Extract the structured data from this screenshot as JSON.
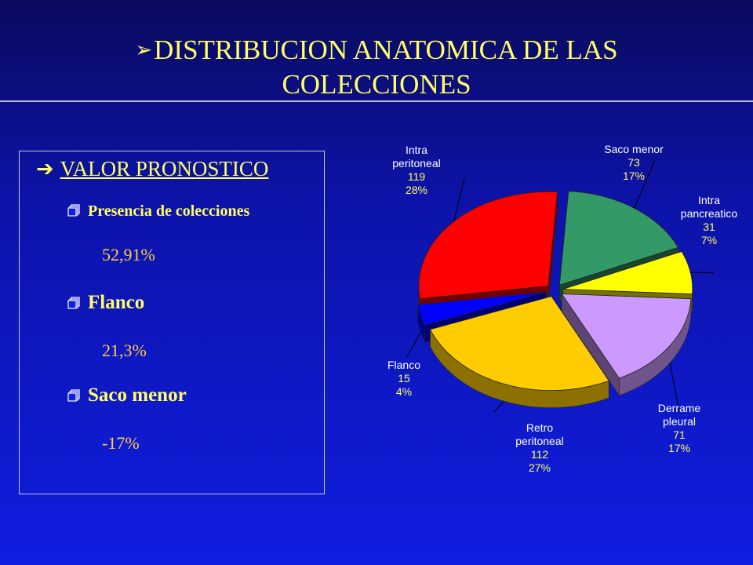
{
  "title": {
    "arrow": "➢",
    "line1": "DISTRIBUCION  ANATOMICA DE LAS",
    "line2": "COLECCIONES"
  },
  "panel": {
    "heading_arrow": "➔",
    "heading": "VALOR PRONOSTICO",
    "items": [
      {
        "label": "Presencia de colecciones",
        "value": "52,91%"
      },
      {
        "label": "Flanco",
        "value": "21,3%"
      },
      {
        "label": "Saco menor",
        "value": "-17%"
      }
    ]
  },
  "colors": {
    "title": "#ffff66",
    "background": "#0f1ee0",
    "values": "#ffcc44"
  },
  "chart_data": {
    "type": "pie",
    "title": "",
    "slices": [
      {
        "name": "Saco menor",
        "value": 73,
        "percent": "17%",
        "color": "#339966"
      },
      {
        "name": "Intra pancreatico",
        "value": 31,
        "percent": "7%",
        "color": "#ffff00"
      },
      {
        "name": "Derrame pleural",
        "value": 71,
        "percent": "17%",
        "color": "#cc99ff"
      },
      {
        "name": "Retro peritoneal",
        "value": 112,
        "percent": "27%",
        "color": "#ffcc00"
      },
      {
        "name": "Flanco",
        "value": 15,
        "percent": "4%",
        "color": "#0000ff"
      },
      {
        "name": "Intra peritoneal",
        "value": 119,
        "percent": "28%",
        "color": "#ff0000"
      }
    ],
    "labels": [
      {
        "line1": "Saco menor",
        "line2": "",
        "value": "73",
        "percent": "17%"
      },
      {
        "line1": "Intra",
        "line2": "pancreatico",
        "value": "31",
        "percent": "7%"
      },
      {
        "line1": "Derrame",
        "line2": "pleural",
        "value": "71",
        "percent": "17%"
      },
      {
        "line1": "Retro",
        "line2": "peritoneal",
        "value": "112",
        "percent": "27%"
      },
      {
        "line1": "Flanco",
        "line2": "",
        "value": "15",
        "percent": "4%"
      },
      {
        "line1": "Intra",
        "line2": "peritoneal",
        "value": "119",
        "percent": "28%"
      }
    ],
    "style": "3d-exploded"
  }
}
